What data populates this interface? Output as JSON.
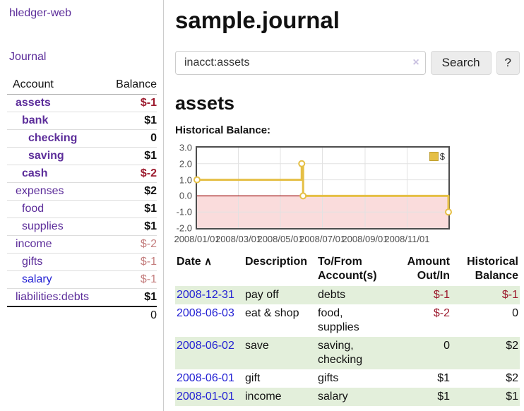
{
  "sidebar": {
    "brand": "hledger-web",
    "nav_journal": "Journal",
    "accounts_header": {
      "account": "Account",
      "balance": "Balance"
    },
    "accounts": [
      {
        "name": "assets",
        "balance": "$-1"
      },
      {
        "name": "bank",
        "balance": "$1"
      },
      {
        "name": "checking",
        "balance": "0"
      },
      {
        "name": "saving",
        "balance": "$1"
      },
      {
        "name": "cash",
        "balance": "$-2"
      },
      {
        "name": "expenses",
        "balance": "$2"
      },
      {
        "name": "food",
        "balance": "$1"
      },
      {
        "name": "supplies",
        "balance": "$1"
      },
      {
        "name": "income",
        "balance": "$-2"
      },
      {
        "name": "gifts",
        "balance": "$-1"
      },
      {
        "name": "salary",
        "balance": "$-1"
      },
      {
        "name": "liabilities:debts",
        "balance": "$1"
      }
    ],
    "total": "0"
  },
  "header": {
    "title": "sample.journal"
  },
  "search": {
    "query": "inacct:assets",
    "clear_icon": "×",
    "button": "Search",
    "help_button": "?"
  },
  "account_page": {
    "heading": "assets",
    "chart_label": "Historical Balance:"
  },
  "chart_data": {
    "type": "line",
    "title": "Historical Balance",
    "step": true,
    "series": [
      {
        "name": "$",
        "color": "#e5bf45",
        "points": [
          {
            "date": "2008-01-01",
            "day": 0,
            "value": 1
          },
          {
            "date": "2008-06-01",
            "day": 152,
            "value": 2
          },
          {
            "date": "2008-06-03",
            "day": 154,
            "value": 0
          },
          {
            "date": "2008-12-31",
            "day": 365,
            "value": -1
          }
        ]
      }
    ],
    "x_ticks": [
      {
        "label": "2008/01/01",
        "day": 0
      },
      {
        "label": "2008/03/01",
        "day": 60
      },
      {
        "label": "2008/05/01",
        "day": 121
      },
      {
        "label": "2008/07/01",
        "day": 182
      },
      {
        "label": "2008/09/01",
        "day": 244
      },
      {
        "label": "2008/11/01",
        "day": 305
      }
    ],
    "y_ticks": [
      {
        "label": "3.0",
        "value": 3
      },
      {
        "label": "2.0",
        "value": 2
      },
      {
        "label": "1.0",
        "value": 1
      },
      {
        "label": "0.0",
        "value": 0
      },
      {
        "label": "-1.0",
        "value": -1
      },
      {
        "label": "-2.0",
        "value": -2
      }
    ],
    "ylim": [
      -2,
      3
    ],
    "x_range_days": [
      0,
      365
    ],
    "grid": true,
    "grid_color": "#e2e2e2",
    "negative_region_color": "#fadcdc",
    "zero_line_color": "#9f1010",
    "legend": {
      "position": "top-right",
      "label": "$"
    }
  },
  "register": {
    "columns": {
      "date": "Date",
      "description": "Description",
      "accounts": "To/From Account(s)",
      "amount": "Amount Out/In",
      "balance": "Historical Balance"
    },
    "sort_indicator": "∧",
    "rows": [
      {
        "date": "2008-12-31",
        "description": "pay off",
        "accounts": "debts",
        "amount": "$-1",
        "balance": "$-1"
      },
      {
        "date": "2008-06-03",
        "description": "eat & shop",
        "accounts": "food, supplies",
        "amount": "$-2",
        "balance": "0"
      },
      {
        "date": "2008-06-02",
        "description": "save",
        "accounts": "saving, checking",
        "amount": "0",
        "balance": "$2"
      },
      {
        "date": "2008-06-01",
        "description": "gift",
        "accounts": "gifts",
        "amount": "$1",
        "balance": "$2"
      },
      {
        "date": "2008-01-01",
        "description": "income",
        "accounts": "salary",
        "amount": "$1",
        "balance": "$1"
      }
    ]
  },
  "colors": {
    "link_purple": "#5c2d9a",
    "link_blue": "#2422d4",
    "negative_strong": "#9c1b2e",
    "negative_soft": "#c47e7e",
    "row_stripe_green": "#e3efdb",
    "chart_line_gold": "#e5bf45",
    "chart_negative_pink": "#fadcdc",
    "chart_zero_line": "#9f1010"
  }
}
